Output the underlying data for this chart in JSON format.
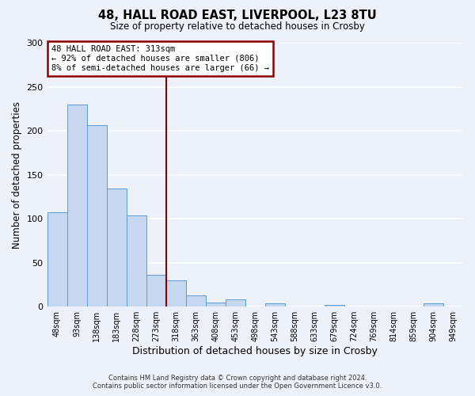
{
  "title1": "48, HALL ROAD EAST, LIVERPOOL, L23 8TU",
  "title2": "Size of property relative to detached houses in Crosby",
  "bar_labels": [
    "48sqm",
    "93sqm",
    "138sqm",
    "183sqm",
    "228sqm",
    "273sqm",
    "318sqm",
    "363sqm",
    "408sqm",
    "453sqm",
    "498sqm",
    "543sqm",
    "588sqm",
    "633sqm",
    "679sqm",
    "724sqm",
    "769sqm",
    "814sqm",
    "859sqm",
    "904sqm",
    "949sqm"
  ],
  "bar_values": [
    107,
    230,
    206,
    134,
    104,
    36,
    30,
    13,
    5,
    8,
    0,
    4,
    0,
    0,
    2,
    0,
    0,
    0,
    0,
    4,
    0
  ],
  "bar_color": "#c5d8f0",
  "bar_edge_color": "#5b9bd5",
  "bar_width": 1.0,
  "ylim": [
    0,
    300
  ],
  "yticks": [
    0,
    50,
    100,
    150,
    200,
    250,
    300
  ],
  "ylabel": "Number of detached properties",
  "xlabel": "Distribution of detached houses by size in Crosby",
  "vline_x": 6.0,
  "vline_color": "#8b0000",
  "annotation_title": "48 HALL ROAD EAST: 313sqm",
  "annotation_line1": "← 92% of detached houses are smaller (806)",
  "annotation_line2": "8% of semi-detached houses are larger (66) →",
  "annotation_box_color": "#ffffff",
  "annotation_box_edge": "#8b0000",
  "footer1": "Contains HM Land Registry data © Crown copyright and database right 2024.",
  "footer2": "Contains public sector information licensed under the Open Government Licence v3.0.",
  "bg_color": "#edf2fa",
  "grid_color": "#ffffff"
}
